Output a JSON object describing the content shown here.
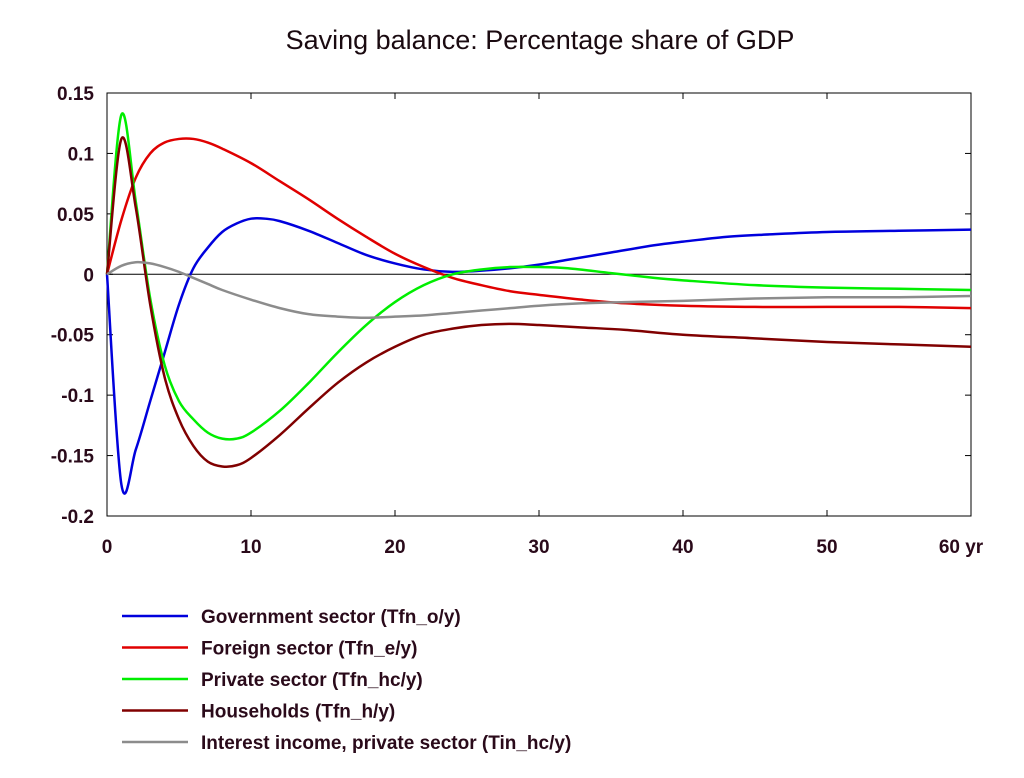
{
  "chart_data": {
    "type": "line",
    "title": "Saving balance: Percentage share of GDP",
    "xlabel": "",
    "ylabel": "",
    "xlim": [
      0,
      60
    ],
    "ylim": [
      -0.2,
      0.15
    ],
    "x_ticks": [
      0,
      10,
      20,
      30,
      40,
      50,
      60
    ],
    "x_tick_labels": [
      "0",
      "10",
      "20",
      "30",
      "40",
      "50",
      "60 yr"
    ],
    "y_ticks": [
      0.15,
      0.1,
      0.05,
      0,
      -0.05,
      -0.1,
      -0.15,
      -0.2
    ],
    "y_tick_labels": [
      "0.15",
      "0.1",
      "0.05",
      "0",
      "-0.05",
      "-0.1",
      "-0.15",
      "-0.2"
    ],
    "grid": false,
    "zero_line": true,
    "legend_position": "bottom",
    "series": [
      {
        "name": "Government sector (Tfn_o/y)",
        "color": "#0000dd",
        "points": [
          [
            0,
            0
          ],
          [
            1,
            -0.174
          ],
          [
            2,
            -0.145
          ],
          [
            3,
            -0.105
          ],
          [
            4,
            -0.065
          ],
          [
            5,
            -0.025
          ],
          [
            6,
            0.005
          ],
          [
            7,
            0.022
          ],
          [
            8,
            0.035
          ],
          [
            9,
            0.042
          ],
          [
            10,
            0.046
          ],
          [
            11,
            0.046
          ],
          [
            12,
            0.044
          ],
          [
            14,
            0.036
          ],
          [
            16,
            0.026
          ],
          [
            18,
            0.016
          ],
          [
            20,
            0.009
          ],
          [
            22,
            0.004
          ],
          [
            24,
            0.002
          ],
          [
            26,
            0.003
          ],
          [
            28,
            0.005
          ],
          [
            30,
            0.008
          ],
          [
            32,
            0.012
          ],
          [
            35,
            0.018
          ],
          [
            38,
            0.024
          ],
          [
            40,
            0.027
          ],
          [
            43,
            0.031
          ],
          [
            46,
            0.033
          ],
          [
            50,
            0.035
          ],
          [
            55,
            0.036
          ],
          [
            60,
            0.037
          ]
        ]
      },
      {
        "name": "Foreign sector (Tfn_e/y)",
        "color": "#e00000",
        "points": [
          [
            0,
            0
          ],
          [
            1,
            0.045
          ],
          [
            2,
            0.08
          ],
          [
            3,
            0.1
          ],
          [
            4,
            0.109
          ],
          [
            5,
            0.112
          ],
          [
            6,
            0.112
          ],
          [
            7,
            0.109
          ],
          [
            8,
            0.104
          ],
          [
            10,
            0.092
          ],
          [
            12,
            0.077
          ],
          [
            14,
            0.062
          ],
          [
            16,
            0.046
          ],
          [
            18,
            0.031
          ],
          [
            20,
            0.017
          ],
          [
            22,
            0.006
          ],
          [
            24,
            -0.003
          ],
          [
            26,
            -0.009
          ],
          [
            28,
            -0.014
          ],
          [
            30,
            -0.017
          ],
          [
            33,
            -0.021
          ],
          [
            36,
            -0.024
          ],
          [
            40,
            -0.026
          ],
          [
            45,
            -0.027
          ],
          [
            50,
            -0.027
          ],
          [
            55,
            -0.027
          ],
          [
            60,
            -0.028
          ]
        ]
      },
      {
        "name": "Private sector (Tfn_hc/y)",
        "color": "#00ee00",
        "points": [
          [
            0,
            0
          ],
          [
            1,
            0.132
          ],
          [
            2,
            0.06
          ],
          [
            3,
            -0.02
          ],
          [
            4,
            -0.075
          ],
          [
            5,
            -0.105
          ],
          [
            6,
            -0.12
          ],
          [
            7,
            -0.131
          ],
          [
            8,
            -0.136
          ],
          [
            9,
            -0.136
          ],
          [
            10,
            -0.131
          ],
          [
            12,
            -0.113
          ],
          [
            14,
            -0.09
          ],
          [
            16,
            -0.065
          ],
          [
            18,
            -0.042
          ],
          [
            20,
            -0.023
          ],
          [
            22,
            -0.009
          ],
          [
            24,
            0
          ],
          [
            26,
            0.004
          ],
          [
            28,
            0.006
          ],
          [
            30,
            0.006
          ],
          [
            32,
            0.005
          ],
          [
            35,
            0.001
          ],
          [
            38,
            -0.003
          ],
          [
            40,
            -0.005
          ],
          [
            45,
            -0.009
          ],
          [
            50,
            -0.011
          ],
          [
            55,
            -0.012
          ],
          [
            60,
            -0.013
          ]
        ]
      },
      {
        "name": "Households (Tfn_h/y)",
        "color": "#800000",
        "points": [
          [
            0,
            0
          ],
          [
            1,
            0.112
          ],
          [
            2,
            0.055
          ],
          [
            3,
            -0.025
          ],
          [
            4,
            -0.085
          ],
          [
            5,
            -0.12
          ],
          [
            6,
            -0.142
          ],
          [
            7,
            -0.155
          ],
          [
            8,
            -0.159
          ],
          [
            9,
            -0.158
          ],
          [
            10,
            -0.152
          ],
          [
            12,
            -0.133
          ],
          [
            14,
            -0.111
          ],
          [
            16,
            -0.09
          ],
          [
            18,
            -0.073
          ],
          [
            20,
            -0.06
          ],
          [
            22,
            -0.05
          ],
          [
            24,
            -0.045
          ],
          [
            26,
            -0.042
          ],
          [
            28,
            -0.041
          ],
          [
            30,
            -0.042
          ],
          [
            33,
            -0.044
          ],
          [
            36,
            -0.046
          ],
          [
            40,
            -0.05
          ],
          [
            45,
            -0.053
          ],
          [
            50,
            -0.056
          ],
          [
            55,
            -0.058
          ],
          [
            60,
            -0.06
          ]
        ]
      },
      {
        "name": "Interest income, private sector (Tin_hc/y)",
        "color": "#8c8c8c",
        "points": [
          [
            0,
            0
          ],
          [
            1,
            0.007
          ],
          [
            2,
            0.01
          ],
          [
            3,
            0.009
          ],
          [
            4,
            0.006
          ],
          [
            5,
            0.002
          ],
          [
            6,
            -0.003
          ],
          [
            7,
            -0.008
          ],
          [
            8,
            -0.013
          ],
          [
            10,
            -0.021
          ],
          [
            12,
            -0.028
          ],
          [
            14,
            -0.033
          ],
          [
            16,
            -0.035
          ],
          [
            18,
            -0.036
          ],
          [
            20,
            -0.035
          ],
          [
            22,
            -0.034
          ],
          [
            24,
            -0.032
          ],
          [
            26,
            -0.03
          ],
          [
            28,
            -0.028
          ],
          [
            30,
            -0.026
          ],
          [
            33,
            -0.024
          ],
          [
            36,
            -0.023
          ],
          [
            40,
            -0.022
          ],
          [
            45,
            -0.02
          ],
          [
            50,
            -0.019
          ],
          [
            55,
            -0.019
          ],
          [
            60,
            -0.018
          ]
        ]
      }
    ]
  }
}
